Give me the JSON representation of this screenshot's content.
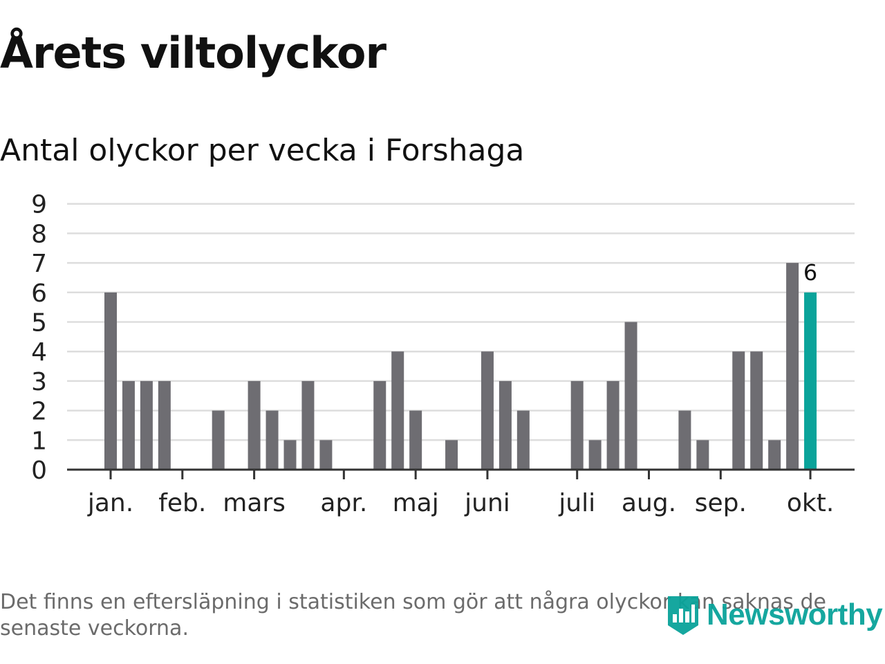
{
  "title": "Årets viltolyckor",
  "subtitle": "Antal olyckor per vecka i Forshaga",
  "footnote": "Det finns en eftersläpning i statistiken som gör att några olyckor kan saknas de senaste veckorna.",
  "logo": {
    "text": "Newsworthy",
    "icon": "bar-chart-badge-icon"
  },
  "colors": {
    "bar": "#6e6d72",
    "highlight": "#0aa39a",
    "grid": "#dddddd",
    "axis": "#333333",
    "text": "#222222"
  },
  "chart_data": {
    "type": "bar",
    "x_unit": "week",
    "weeks": [
      1,
      2,
      3,
      4,
      5,
      6,
      7,
      8,
      9,
      10,
      11,
      12,
      13,
      14,
      15,
      16,
      17,
      18,
      19,
      20,
      21,
      22,
      23,
      24,
      25,
      26,
      27,
      28,
      29,
      30,
      31,
      32,
      33,
      34,
      35,
      36,
      37,
      38,
      39,
      40,
      41
    ],
    "values": [
      6,
      3,
      3,
      3,
      0,
      0,
      2,
      0,
      3,
      2,
      1,
      3,
      1,
      0,
      0,
      3,
      4,
      2,
      0,
      1,
      0,
      4,
      3,
      2,
      0,
      0,
      3,
      1,
      3,
      5,
      0,
      0,
      2,
      1,
      0,
      4,
      4,
      1,
      7,
      6,
      null
    ],
    "highlight_week": 40,
    "highlight_label": "6",
    "yticks": [
      0,
      1,
      2,
      3,
      4,
      5,
      6,
      7,
      8,
      9
    ],
    "ylim": [
      0,
      9
    ],
    "month_ticks": [
      {
        "label": "jan.",
        "week": 1
      },
      {
        "label": "feb.",
        "week": 5
      },
      {
        "label": "mars",
        "week": 9
      },
      {
        "label": "apr.",
        "week": 14
      },
      {
        "label": "maj",
        "week": 18
      },
      {
        "label": "juni",
        "week": 22
      },
      {
        "label": "juli",
        "week": 27
      },
      {
        "label": "aug.",
        "week": 31
      },
      {
        "label": "sep.",
        "week": 35
      },
      {
        "label": "okt.",
        "week": 40
      }
    ],
    "grid": true
  }
}
